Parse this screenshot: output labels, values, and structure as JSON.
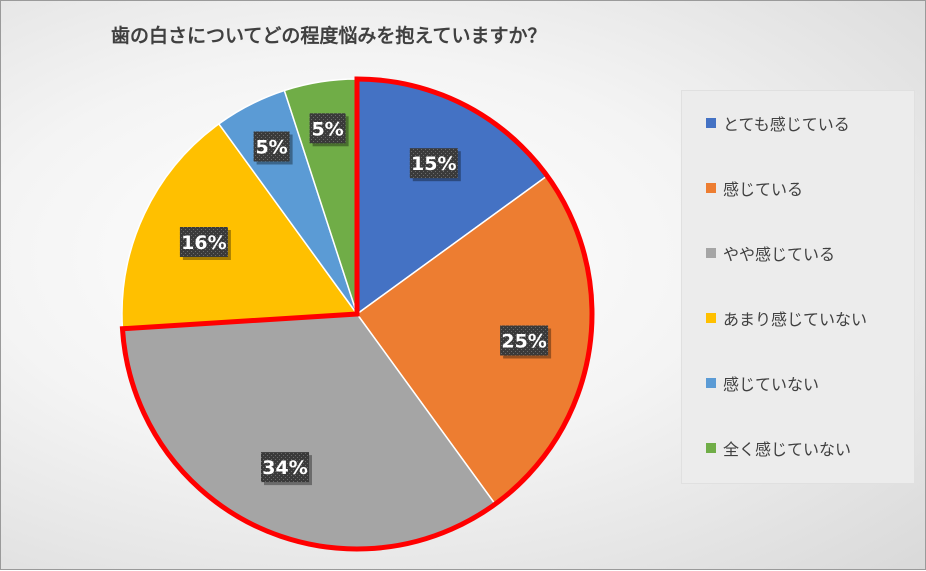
{
  "chart_data": {
    "type": "pie",
    "title": "歯の白さについてどの程度悩みを抱えていますか？",
    "start_angle_deg": 0,
    "direction": "clockwise",
    "legend_position": "right",
    "highlighted_slices": [
      0,
      1,
      2
    ],
    "slices": [
      {
        "label": "とても感じている",
        "value": 15,
        "display": "15%",
        "color": "#4472C4"
      },
      {
        "label": "感じている",
        "value": 25,
        "display": "25%",
        "color": "#ED7D31"
      },
      {
        "label": "やや感じている",
        "value": 34,
        "display": "34%",
        "color": "#A5A5A5"
      },
      {
        "label": "あまり感じていない",
        "value": 16,
        "display": "16%",
        "color": "#FFC000"
      },
      {
        "label": "感じていない",
        "value": 5,
        "display": "5%",
        "color": "#5B9BD5"
      },
      {
        "label": "全く感じていない",
        "value": 5,
        "display": "5%",
        "color": "#70AD47"
      }
    ]
  },
  "colors": {
    "highlight_outline": "#FF0000",
    "label_box": "#3a3a3a"
  }
}
